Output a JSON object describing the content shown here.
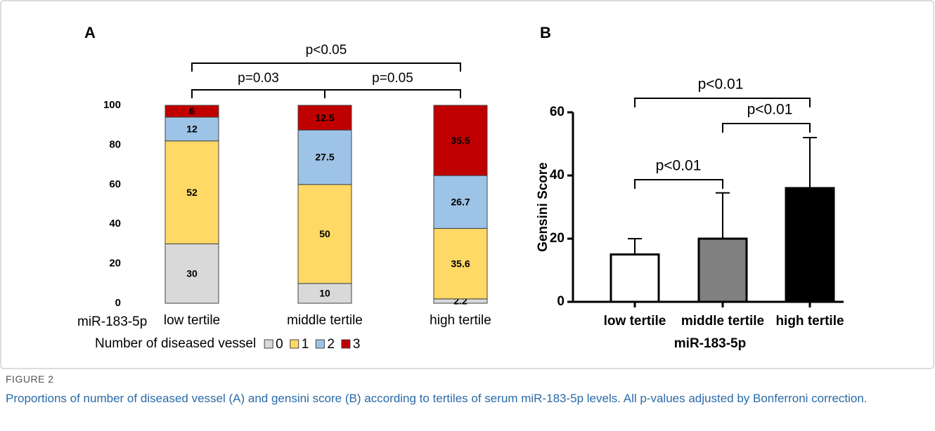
{
  "chart_data": [
    {
      "type": "stacked_bar",
      "panel": "A",
      "categories": [
        "low tertile",
        "middle tertile",
        "high tertile"
      ],
      "x_axis_label": "miR-183-5p",
      "legend_title": "Number of diseased vessel",
      "legend": "bottom",
      "series": [
        {
          "name": "0",
          "color": "#d9d9d9",
          "values": [
            30,
            10,
            2.2
          ]
        },
        {
          "name": "1",
          "color": "#ffd966",
          "values": [
            52,
            50,
            35.6
          ]
        },
        {
          "name": "2",
          "color": "#9dc3e6",
          "values": [
            12,
            27.5,
            26.7
          ]
        },
        {
          "name": "3",
          "color": "#c00000",
          "values": [
            6,
            12.5,
            35.5
          ]
        }
      ],
      "ylim": [
        0,
        100
      ],
      "yticks": [
        0,
        20,
        40,
        60,
        80,
        100
      ],
      "annotations": [
        "p<0.05",
        "p=0.03",
        "p=0.05"
      ]
    },
    {
      "type": "bar",
      "panel": "B",
      "categories": [
        "low tertile",
        "middle tertile",
        "high tertile"
      ],
      "x_axis_label": "miR-183-5p",
      "y_axis_label": "Gensini Score",
      "values": [
        15,
        20,
        36
      ],
      "errors": [
        5,
        14.5,
        16
      ],
      "colors": [
        "#ffffff",
        "#808080",
        "#000000"
      ],
      "ylim": [
        0,
        60
      ],
      "yticks": [
        0,
        20,
        40,
        60
      ],
      "annotations": [
        "p<0.01",
        "p<0.01",
        "p<0.01"
      ]
    }
  ],
  "caption": {
    "label": "FIGURE 2",
    "text": "Proportions of number of diseased vessel (A) and gensini score (B) according to tertiles of serum miR-183-5p levels. All p-values adjusted by Bonferroni correction."
  }
}
